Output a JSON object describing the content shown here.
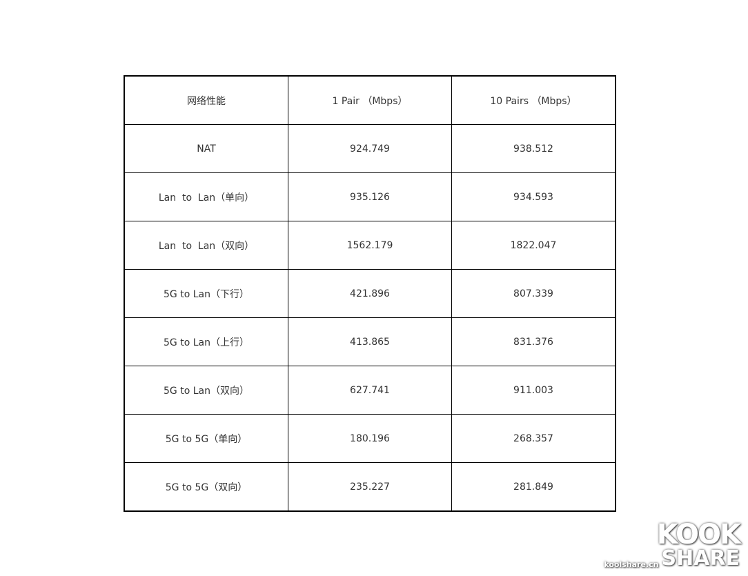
{
  "table": {
    "headers": [
      "网络性能",
      "1 Pair （Mbps）",
      "10 Pairs （Mbps）"
    ],
    "rows": [
      [
        "NAT",
        "924.749",
        "938.512"
      ],
      [
        "Lan  to  Lan（单向）",
        "935.126",
        "934.593"
      ],
      [
        "Lan  to  Lan（双向）",
        "1562.179",
        "1822.047"
      ],
      [
        "5G to Lan（下行）",
        "421.896",
        "807.339"
      ],
      [
        "5G to Lan（上行）",
        "413.865",
        "831.376"
      ],
      [
        "5G to Lan（双向）",
        "627.741",
        "911.003"
      ],
      [
        "5G to 5G（单向）",
        "180.196",
        "268.357"
      ],
      [
        "5G to 5G（双向）",
        "235.227",
        "281.849"
      ]
    ]
  },
  "watermark": {
    "logo_top": "KOOK",
    "logo_bottom": "SHARE",
    "site": "koolshare.cn"
  }
}
